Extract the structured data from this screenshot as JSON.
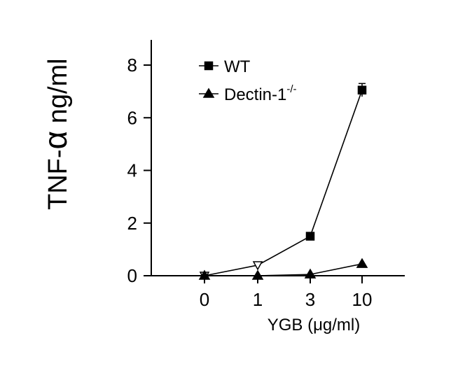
{
  "chart_data": {
    "type": "line",
    "title": "",
    "xlabel": "YGB (μg/ml)",
    "ylabel_main": "TNF-",
    "ylabel_greek": "α",
    "ylabel_unit": " ng/ml",
    "categories": [
      "0",
      "1",
      "3",
      "10"
    ],
    "ylim": [
      0,
      8
    ],
    "yticks": [
      0,
      2,
      4,
      6,
      8
    ],
    "grid": false,
    "legend_position": "top-left",
    "series": [
      {
        "name": "WT",
        "marker": "square",
        "values": [
          0,
          0.4,
          1.5,
          7.05
        ],
        "marker_fill": [
          "none",
          "none",
          "#000000",
          "#000000"
        ],
        "marker_shape_override": [
          "triangle-down",
          "triangle-down",
          "square",
          "square"
        ],
        "errors": [
          0,
          0,
          0,
          0.25
        ]
      },
      {
        "name": "Dectin-1",
        "name_superscript": "-/-",
        "marker": "triangle",
        "values": [
          0,
          0,
          0.05,
          0.45
        ],
        "marker_fill": [
          "#000000",
          "#000000",
          "#000000",
          "#000000"
        ],
        "errors": [
          0,
          0,
          0,
          0
        ]
      }
    ]
  }
}
